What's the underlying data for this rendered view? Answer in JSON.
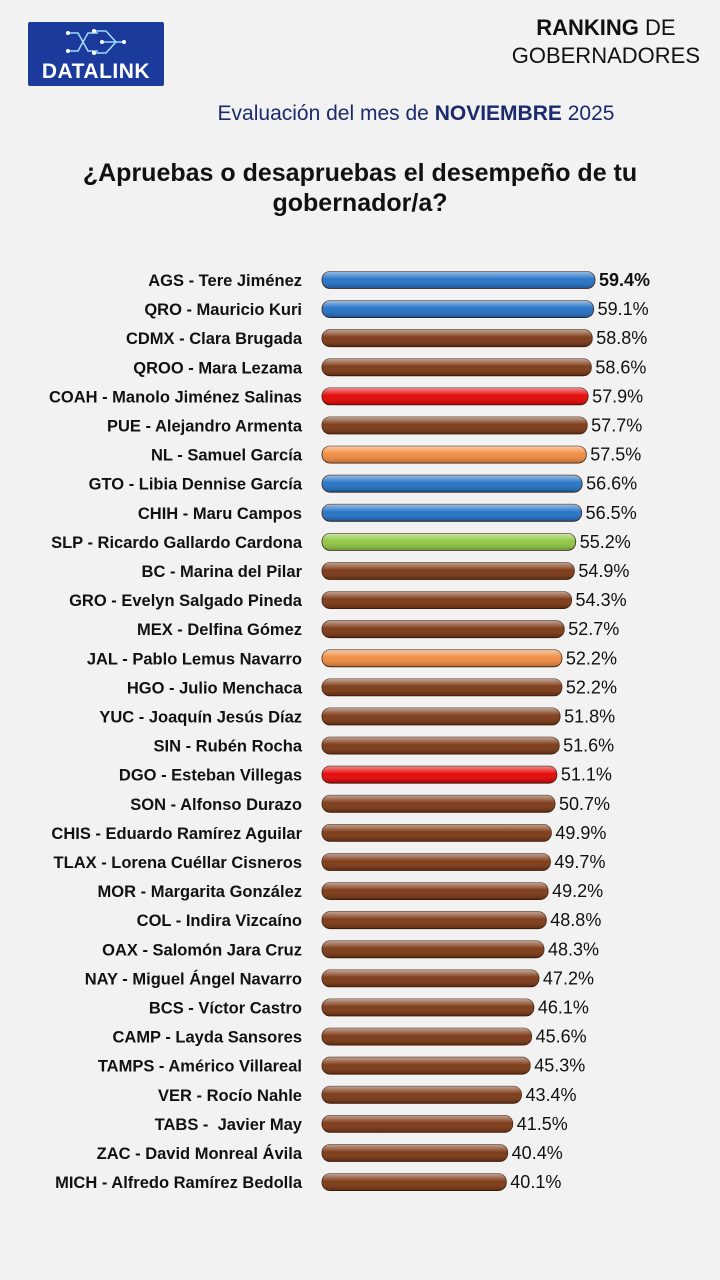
{
  "header": {
    "brand": "DATALINK",
    "title_bold": "RANKING",
    "title_rest": " DE",
    "title_line2": "GOBERNADORES",
    "subtitle_prefix": "Evaluación del mes de ",
    "subtitle_month": "NOVIEMBRE",
    "subtitle_year": " 2025",
    "question": "¿Apruebas o desapruebas el desempeño de tu gobernador/a?"
  },
  "colors": {
    "blue": "#1f6fc5",
    "brown": "#7a3510",
    "red": "#e60000",
    "orange": "#f08a3c",
    "green": "#8cc63f"
  },
  "chart_data": {
    "type": "bar",
    "orientation": "horizontal",
    "xlim": [
      0,
      59.4
    ],
    "value_suffix": "%",
    "categories": [
      "AGS - Tere Jiménez",
      "QRO - Mauricio Kuri",
      "CDMX - Clara Brugada",
      "QROO - Mara Lezama",
      "COAH - Manolo Jiménez Salinas",
      "PUE - Alejandro Armenta",
      "NL - Samuel García",
      "GTO - Libia Dennise García",
      "CHIH - Maru Campos",
      "SLP - Ricardo Gallardo Cardona",
      "BC - Marina del Pilar",
      "GRO - Evelyn Salgado Pineda",
      "MEX - Delfina Gómez",
      "JAL - Pablo Lemus Navarro",
      "HGO - Julio Menchaca",
      "YUC - Joaquín Jesús Díaz",
      "SIN - Rubén Rocha",
      "DGO - Esteban Villegas",
      "SON - Alfonso Durazo",
      "CHIS - Eduardo Ramírez Aguilar",
      "TLAX - Lorena Cuéllar Cisneros",
      "MOR - Margarita González",
      "COL - Indira Vizcaíno",
      "OAX - Salomón Jara Cruz",
      "NAY - Miguel Ángel Navarro",
      "BCS - Víctor Castro",
      "CAMP - Layda Sansores",
      "TAMPS - Américo Villareal",
      "VER - Rocío Nahle",
      "TABS -  Javier May",
      "ZAC - David Monreal Ávila",
      "MICH - Alfredo Ramírez Bedolla"
    ],
    "values": [
      59.4,
      59.1,
      58.8,
      58.6,
      57.9,
      57.7,
      57.5,
      56.6,
      56.5,
      55.2,
      54.9,
      54.3,
      52.7,
      52.2,
      52.2,
      51.8,
      51.6,
      51.1,
      50.7,
      49.9,
      49.7,
      49.2,
      48.8,
      48.3,
      47.2,
      46.1,
      45.6,
      45.3,
      43.4,
      41.5,
      40.4,
      40.1
    ],
    "labels": [
      "59.4%",
      "59.1%",
      "58.8%",
      "58.6%",
      "57.9%",
      "57.7%",
      "57.5%",
      "56.6%",
      "56.5%",
      "55.2%",
      "54.9%",
      "54.3%",
      "52.7%",
      "52.2%",
      "52.2%",
      "51.8%",
      "51.6%",
      "51.1%",
      "50.7%",
      "49.9%",
      "49.7%",
      "49.2%",
      "48.8%",
      "48.3%",
      "47.2%",
      "46.1%",
      "45.6%",
      "45.3%",
      "43.4%",
      "41.5%",
      "40.4%",
      "40.1%"
    ],
    "bar_colors": [
      "blue",
      "blue",
      "brown",
      "brown",
      "red",
      "brown",
      "orange",
      "blue",
      "blue",
      "green",
      "brown",
      "brown",
      "brown",
      "orange",
      "brown",
      "brown",
      "brown",
      "red",
      "brown",
      "brown",
      "brown",
      "brown",
      "brown",
      "brown",
      "brown",
      "brown",
      "brown",
      "brown",
      "brown",
      "brown",
      "brown",
      "brown"
    ],
    "highlight_index": 0
  }
}
